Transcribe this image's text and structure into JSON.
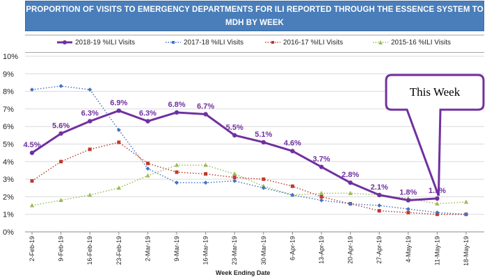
{
  "title": "PROPORTION OF VISITS TO EMERGENCY DEPARTMENTS FOR ILI REPORTED THROUGH THE ESSENCE SYSTEM TO MDH BY WEEK",
  "callout_text": "This Week",
  "colors": {
    "title_bg": "#4a7ebb",
    "s2018": "#7030a0",
    "s2017": "#4472c4",
    "s2016": "#c0392b",
    "s2015": "#9bbb59"
  },
  "chart_data": {
    "type": "line",
    "title": "PROPORTION OF VISITS TO EMERGENCY DEPARTMENTS FOR ILI REPORTED THROUGH THE ESSENCE SYSTEM TO MDH BY WEEK",
    "xlabel": "Week Ending Date",
    "ylabel": "",
    "ylim": [
      0,
      10
    ],
    "y_ticks": [
      "0%",
      "1%",
      "2%",
      "3%",
      "4%",
      "5%",
      "6%",
      "7%",
      "8%",
      "9%",
      "10%"
    ],
    "categories": [
      "2-Feb-19",
      "9-Feb-19",
      "16-Feb-19",
      "23-Feb-19",
      "2-Mar-19",
      "9-Mar-19",
      "16-Mar-19",
      "23-Mar-19",
      "30-Mar-19",
      "6-Apr-19",
      "13-Apr-19",
      "20-Apr-19",
      "27-Apr-19",
      "4-May-19",
      "11-May-19",
      "18-May-19"
    ],
    "legend_position": "top",
    "grid": true,
    "series": [
      {
        "name": "2018-19 %ILI Visits",
        "style": "solid",
        "values": [
          4.5,
          5.6,
          6.3,
          6.9,
          6.3,
          6.8,
          6.7,
          5.5,
          5.1,
          4.6,
          3.7,
          2.8,
          2.1,
          1.8,
          1.9,
          null
        ],
        "labels": [
          "4.5%",
          "5.6%",
          "6.3%",
          "6.9%",
          "6.3%",
          "6.8%",
          "6.7%",
          "5.5%",
          "5.1%",
          "4.6%",
          "3.7%",
          "2.8%",
          "2.1%",
          "1.8%",
          "1.9%",
          null
        ]
      },
      {
        "name": "2017-18 %ILI Visits",
        "style": "dotted",
        "values": [
          8.1,
          8.3,
          8.1,
          5.8,
          3.6,
          2.8,
          2.8,
          2.9,
          2.5,
          2.1,
          1.8,
          1.6,
          1.5,
          1.3,
          1.1,
          1.0
        ]
      },
      {
        "name": "2016-17 %ILI Visits",
        "style": "dotted",
        "values": [
          2.9,
          4.0,
          4.7,
          5.1,
          3.9,
          3.4,
          3.3,
          3.1,
          3.0,
          2.6,
          2.0,
          1.6,
          1.2,
          1.1,
          1.0,
          1.0
        ]
      },
      {
        "name": "2015-16 %ILI Visits",
        "style": "dotted",
        "values": [
          1.5,
          1.8,
          2.1,
          2.5,
          3.2,
          3.8,
          3.8,
          3.3,
          2.6,
          2.1,
          2.2,
          2.2,
          2.1,
          1.9,
          1.6,
          1.7
        ]
      }
    ]
  }
}
